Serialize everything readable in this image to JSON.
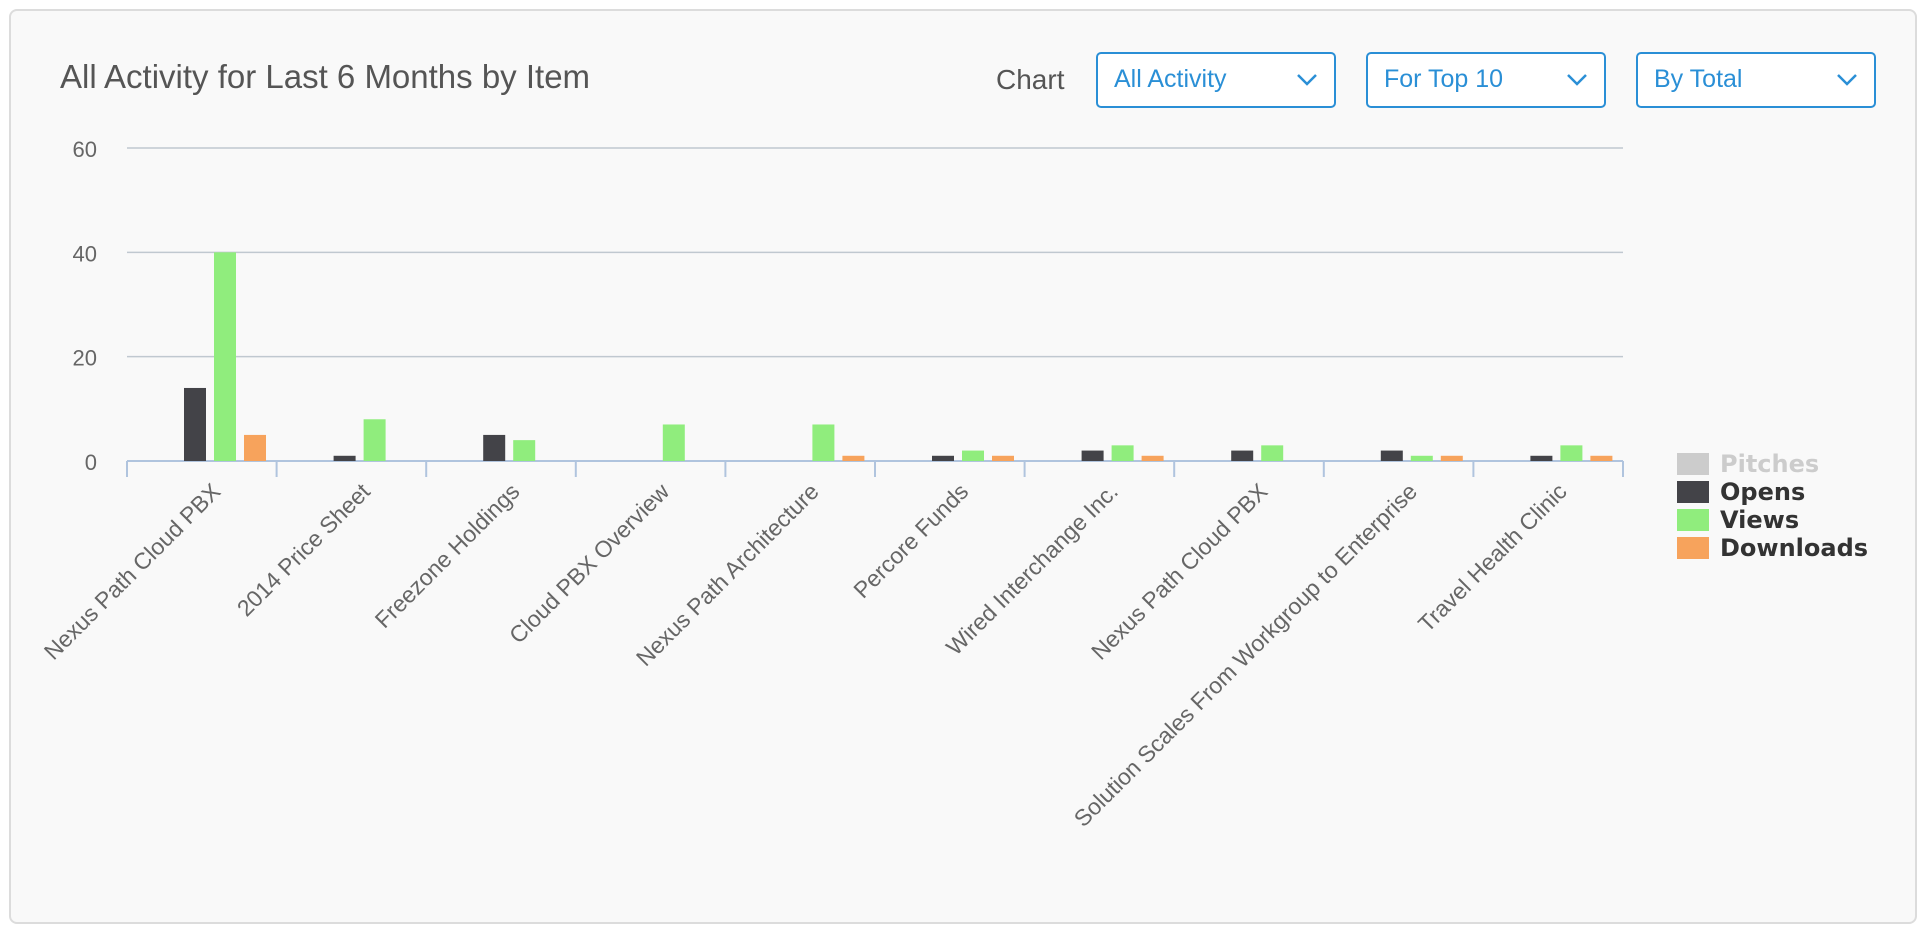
{
  "header": {
    "title": "All Activity for Last 6 Months by Item",
    "chart_label": "Chart"
  },
  "selects": [
    {
      "value": "All Activity"
    },
    {
      "value": "For Top 10"
    },
    {
      "value": "By Total"
    }
  ],
  "colors": {
    "Pitches": "#cccccc",
    "Opens": "#434348",
    "Views": "#90ed7d",
    "Downloads": "#f7a35c",
    "grid": "#c0c8d0",
    "axis": "#b0c4de",
    "text": "#666666"
  },
  "legend": [
    {
      "name": "Pitches",
      "hidden": true
    },
    {
      "name": "Opens",
      "hidden": false
    },
    {
      "name": "Views",
      "hidden": false
    },
    {
      "name": "Downloads",
      "hidden": false
    }
  ],
  "chart_data": {
    "type": "bar",
    "title": "All Activity for Last 6 Months by Item",
    "xlabel": "",
    "ylabel": "",
    "ylim": [
      0,
      60
    ],
    "yticks": [
      0,
      20,
      40,
      60
    ],
    "grid": true,
    "legend_position": "right",
    "categories": [
      "Nexus Path Cloud PBX",
      "2014 Price Sheet",
      "Freezone Holdings",
      "Cloud PBX Overview",
      "Nexus Path Architecture",
      "Percore Funds",
      "Wired Interchange Inc.",
      "Nexus Path Cloud PBX",
      "Solution Scales From Workgroup to Enterprise",
      "Travel Health Clinic"
    ],
    "series": [
      {
        "name": "Pitches",
        "values": [
          0,
          0,
          0,
          0,
          0,
          0,
          0,
          0,
          0,
          0
        ]
      },
      {
        "name": "Opens",
        "values": [
          14,
          1,
          5,
          0,
          0,
          1,
          2,
          2,
          2,
          1
        ]
      },
      {
        "name": "Views",
        "values": [
          40,
          8,
          4,
          7,
          7,
          2,
          3,
          3,
          1,
          3
        ]
      },
      {
        "name": "Downloads",
        "values": [
          5,
          0,
          0,
          0,
          1,
          1,
          1,
          0,
          1,
          1
        ]
      }
    ]
  }
}
